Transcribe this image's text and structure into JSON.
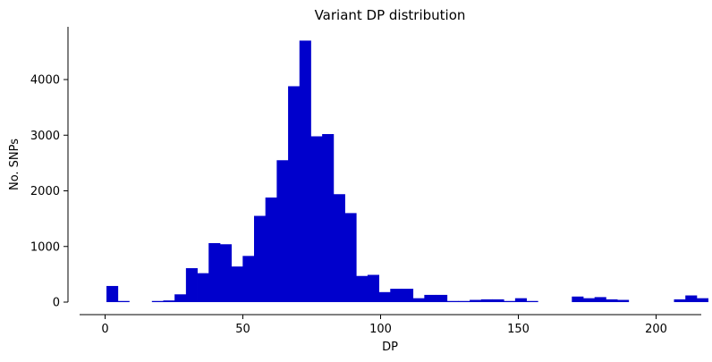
{
  "chart_data": {
    "type": "bar",
    "title": "Variant DP distribution",
    "xlabel": "DP",
    "ylabel": "No. SNPs",
    "xlim": [
      -10,
      215
    ],
    "ylim": [
      0,
      4900
    ],
    "xticks": [
      0,
      50,
      100,
      150,
      200
    ],
    "yticks": [
      0,
      1000,
      2000,
      3000,
      4000
    ],
    "bar_color": "#0000cc",
    "grid": false,
    "bin_width": 4.12,
    "bin_edges_start": 0.5,
    "values": [
      290,
      20,
      0,
      0,
      20,
      30,
      140,
      610,
      520,
      1060,
      1040,
      640,
      830,
      1550,
      1880,
      2550,
      3880,
      4700,
      2980,
      3020,
      1940,
      1600,
      470,
      490,
      180,
      240,
      240,
      70,
      130,
      130,
      20,
      20,
      40,
      50,
      50,
      20,
      70,
      20,
      0,
      0,
      0,
      100,
      70,
      90,
      50,
      40,
      0,
      0,
      0,
      0,
      50,
      120,
      70
    ]
  }
}
